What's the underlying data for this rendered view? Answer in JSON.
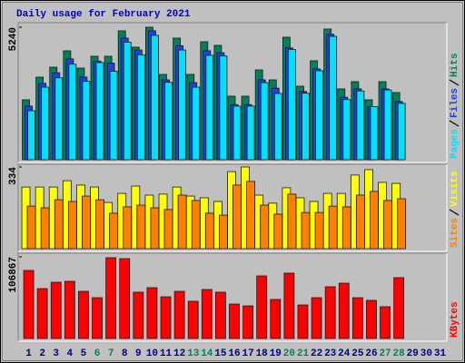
{
  "chart_data": [
    {
      "type": "bar",
      "title": "Daily usage for February 2021",
      "ylim": [
        0,
        5240
      ],
      "yticks": [
        5240
      ],
      "series": [
        {
          "name": "Hits",
          "color": "#00805c",
          "values": [
            2369,
            3266,
            3661,
            4307,
            3625,
            4092,
            4092,
            5097,
            4451,
            5240,
            3374,
            4810,
            3374,
            4666,
            4523,
            2513,
            2513,
            3553,
            3159,
            4846,
            2907,
            3913,
            5169,
            2800,
            3087,
            2369,
            3087,
            2656,
            null,
            null,
            null
          ]
        },
        {
          "name": "Files",
          "color": "#2040e0",
          "values": [
            2120,
            3020,
            3440,
            3990,
            3270,
            3900,
            3820,
            4810,
            4340,
            5100,
            3160,
            4510,
            3050,
            4310,
            4230,
            2180,
            2180,
            3160,
            2830,
            4420,
            2700,
            3590,
            4960,
            2470,
            2800,
            2100,
            2800,
            2300,
            null,
            null,
            null
          ]
        },
        {
          "name": "Pages",
          "color": "#00e0ff",
          "values": [
            1940,
            2870,
            3240,
            3780,
            3100,
            3840,
            3500,
            4650,
            4150,
            4920,
            3060,
            4340,
            2870,
            4130,
            4100,
            2120,
            2120,
            3050,
            2620,
            4360,
            2630,
            3520,
            4880,
            2380,
            2720,
            2100,
            2760,
            2230,
            null,
            null,
            null
          ]
        }
      ]
    },
    {
      "type": "bar",
      "ylim": [
        0,
        334
      ],
      "yticks": [
        334
      ],
      "series": [
        {
          "name": "Visits",
          "color": "#ffff00",
          "values": [
            252,
            252,
            252,
            278,
            260,
            252,
            189,
            226,
            256,
            219,
            223,
            252,
            215,
            208,
            193,
            315,
            334,
            219,
            186,
            249,
            208,
            193,
            226,
            226,
            301,
            323,
            271,
            267,
            null,
            null,
            null
          ]
        },
        {
          "name": "Sites",
          "color": "#ff8000",
          "values": [
            174,
            167,
            200,
            193,
            215,
            200,
            145,
            171,
            178,
            167,
            160,
            219,
            197,
            145,
            137,
            260,
            275,
            178,
            141,
            223,
            148,
            148,
            174,
            171,
            219,
            234,
            197,
            204,
            null,
            null,
            null
          ]
        }
      ]
    },
    {
      "type": "bar",
      "ylim": [
        0,
        106867
      ],
      "yticks": [
        106867
      ],
      "categories": [
        "1",
        "2",
        "3",
        "4",
        "5",
        "6",
        "7",
        "8",
        "9",
        "10",
        "11",
        "12",
        "13",
        "14",
        "15",
        "16",
        "17",
        "18",
        "19",
        "20",
        "21",
        "22",
        "23",
        "24",
        "25",
        "26",
        "27",
        "28",
        "29",
        "30",
        "31"
      ],
      "category_colors": [
        "#000080",
        "#000080",
        "#000080",
        "#000080",
        "#000080",
        "#008060",
        "#008060",
        "#000080",
        "#000080",
        "#000080",
        "#000080",
        "#000080",
        "#008060",
        "#008060",
        "#000080",
        "#000080",
        "#000080",
        "#000080",
        "#000080",
        "#008060",
        "#008060",
        "#000080",
        "#000080",
        "#000080",
        "#000080",
        "#000080",
        "#008060",
        "#008060",
        "#000080",
        "#000080",
        "#000080"
      ],
      "series": [
        {
          "name": "KBytes",
          "color": "#ff0000",
          "values": [
            89056,
            65300,
            73600,
            74800,
            61700,
            53400,
            105700,
            104500,
            60600,
            66500,
            54600,
            61700,
            48700,
            64100,
            60600,
            45100,
            42700,
            81900,
            51100,
            85500,
            43900,
            53400,
            67700,
            72400,
            53400,
            49900,
            41600,
            79600,
            null,
            null,
            null
          ]
        }
      ]
    }
  ]
}
